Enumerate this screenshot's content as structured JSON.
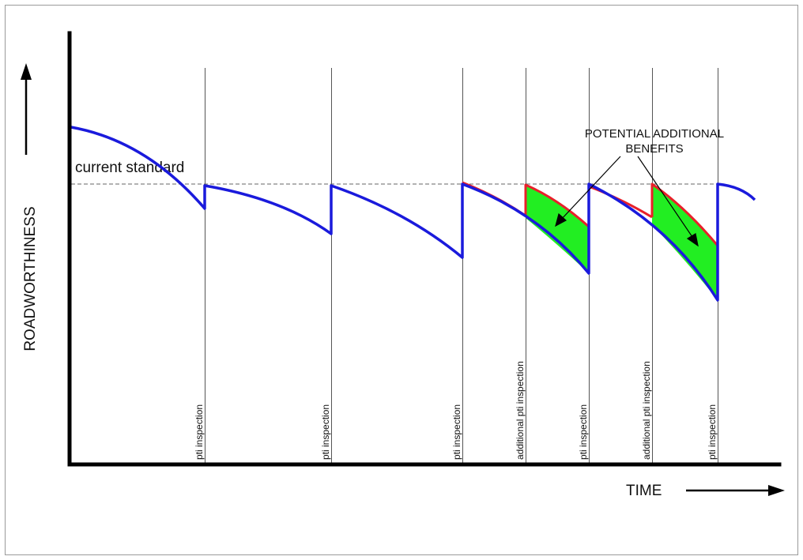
{
  "y_axis_label": "ROADWORTHINESS",
  "x_axis_label": "TIME",
  "standard_label": "current standard",
  "benefits_label": {
    "line1": "POTENTIAL ADDITIONAL",
    "line2": "BENEFITS"
  },
  "inspections": [
    {
      "label": "pti inspection"
    },
    {
      "label": "pti inspection"
    },
    {
      "label": "pti inspection"
    },
    {
      "label": "additional pti inspection"
    },
    {
      "label": "pti inspection"
    },
    {
      "label": "additional pti inspection"
    },
    {
      "label": "pti inspection"
    }
  ],
  "colors": {
    "baseline_curve": "#1a1adc",
    "improved_curve": "#e8202a",
    "benefit_fill": "#22ee22",
    "axes": "#000000",
    "standard_line": "#666666"
  }
}
